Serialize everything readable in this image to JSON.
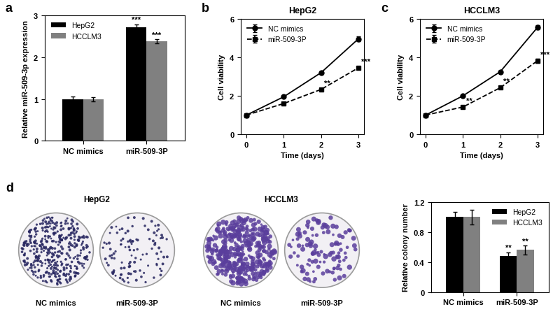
{
  "chart_data": [
    {
      "panel_label": "a",
      "type": "bar",
      "categories": [
        "NC mimics",
        "miR-509-3P"
      ],
      "y_label": "Relative miR-509-3p expression",
      "ylim": [
        0,
        3
      ],
      "yticks": [
        0,
        1,
        2,
        3
      ],
      "legend": "upper left",
      "series": [
        {
          "name": "HepG2",
          "color": "#000000",
          "values": [
            1.0,
            2.72
          ],
          "errors": [
            0.06,
            0.07
          ]
        },
        {
          "name": "HCCLM3",
          "color": "#808080",
          "values": [
            1.0,
            2.38
          ],
          "errors": [
            0.05,
            0.05
          ]
        }
      ],
      "annotations": [
        {
          "series": "HepG2",
          "category": "miR-509-3P",
          "text": "***"
        },
        {
          "series": "HCCLM3",
          "category": "miR-509-3P",
          "text": "***"
        }
      ]
    },
    {
      "panel_label": "b",
      "type": "line",
      "title": "HepG2",
      "x": [
        0,
        1,
        2,
        3
      ],
      "x_label": "Time (days)",
      "y_label": "Cell viability",
      "xlim": [
        -0.15,
        3.15
      ],
      "xticks": [
        0,
        1,
        2,
        3
      ],
      "ylim": [
        0,
        6
      ],
      "yticks": [
        0,
        2,
        4,
        6
      ],
      "legend": "upper left",
      "series": [
        {
          "name": "NC mimics",
          "color": "#000000",
          "marker": "circle",
          "line_style": "solid",
          "values": [
            1.0,
            1.95,
            3.2,
            4.95
          ],
          "errors": [
            0.03,
            0.05,
            0.06,
            0.12
          ]
        },
        {
          "name": "miR-509-3P",
          "color": "#000000",
          "marker": "square",
          "line_style": "dashed",
          "values": [
            1.0,
            1.6,
            2.33,
            3.45
          ],
          "errors": [
            0.03,
            0.05,
            0.05,
            0.05
          ]
        }
      ],
      "annotations": [
        {
          "series": "miR-509-3P",
          "x": 2,
          "text": "**"
        },
        {
          "series": "miR-509-3P",
          "x": 3,
          "text": "***"
        }
      ]
    },
    {
      "panel_label": "c",
      "type": "line",
      "title": "HCCLM3",
      "x": [
        0,
        1,
        2,
        3
      ],
      "x_label": "Time (days)",
      "y_label": "Cell viability",
      "xlim": [
        -0.15,
        3.15
      ],
      "xticks": [
        0,
        1,
        2,
        3
      ],
      "ylim": [
        0,
        6
      ],
      "yticks": [
        0,
        2,
        4,
        6
      ],
      "legend": "upper left",
      "series": [
        {
          "name": "NC mimics",
          "color": "#000000",
          "marker": "circle",
          "line_style": "solid",
          "values": [
            1.0,
            2.0,
            3.25,
            5.55
          ],
          "errors": [
            0.03,
            0.05,
            0.05,
            0.12
          ]
        },
        {
          "name": "miR-509-3P",
          "color": "#000000",
          "marker": "square",
          "line_style": "dashed",
          "values": [
            1.0,
            1.42,
            2.42,
            3.82
          ],
          "errors": [
            0.03,
            0.05,
            0.05,
            0.1
          ]
        }
      ],
      "annotations": [
        {
          "series": "miR-509-3P",
          "x": 1,
          "text": "**"
        },
        {
          "series": "miR-509-3P",
          "x": 2,
          "text": "**"
        },
        {
          "series": "miR-509-3P",
          "x": 3,
          "text": "***"
        }
      ]
    },
    {
      "panel_label": "d",
      "type": "bar",
      "categories": [
        "NC mimics",
        "miR-509-3P"
      ],
      "y_label": "Relative colony number",
      "ylim": [
        0,
        1.2
      ],
      "yticks": [
        0,
        0.4,
        0.8,
        1.2
      ],
      "legend": "upper right",
      "series": [
        {
          "name": "HepG2",
          "color": "#000000",
          "values": [
            1.0,
            0.48
          ],
          "errors": [
            0.07,
            0.05
          ]
        },
        {
          "name": "HCCLM3",
          "color": "#808080",
          "values": [
            1.0,
            0.56
          ],
          "errors": [
            0.1,
            0.06
          ]
        }
      ],
      "annotations": [
        {
          "series": "HepG2",
          "category": "miR-509-3P",
          "text": "**"
        },
        {
          "series": "HCCLM3",
          "category": "miR-509-3P",
          "text": "**"
        }
      ]
    }
  ],
  "colony_images": {
    "groups": [
      {
        "title": "HepG2",
        "labels": [
          "NC mimics",
          "miR-509-3P"
        ]
      },
      {
        "title": "HCCLM3",
        "labels": [
          "NC mimics",
          "miR-509-3P"
        ]
      }
    ]
  }
}
